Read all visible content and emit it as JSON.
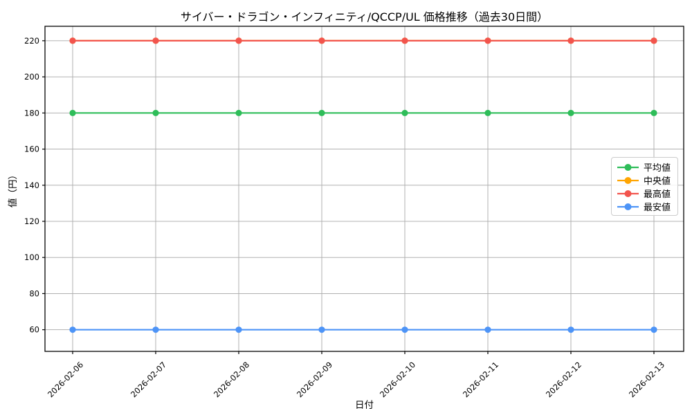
{
  "figure": {
    "background": "#ffffff",
    "spine_color": "#000000",
    "tick_label_color": "#000000"
  },
  "chart_data": {
    "type": "line",
    "title": "サイバー・ドラゴン・インフィニティ/QCCP/UL 価格推移（過去30日間）",
    "xlabel": "日付",
    "ylabel": "値（円）",
    "x": [
      "2026-02-06",
      "2026-02-07",
      "2026-02-08",
      "2026-02-09",
      "2026-02-10",
      "2026-02-11",
      "2026-02-12",
      "2026-02-13"
    ],
    "x_tick_rotation": 45,
    "yticks": [
      60,
      80,
      100,
      120,
      140,
      160,
      180,
      200,
      220
    ],
    "ylim": [
      48,
      228
    ],
    "grid": true,
    "grid_color": "#b0b0b0",
    "legend_position": "center-right",
    "series": [
      {
        "key": "average",
        "name": "平均値",
        "color": "#2ebd59",
        "values": [
          180,
          180,
          180,
          180,
          180,
          180,
          180,
          180
        ]
      },
      {
        "key": "median",
        "name": "中央値",
        "color": "#ffa502",
        "values": [
          220,
          220,
          220,
          220,
          220,
          220,
          220,
          220
        ]
      },
      {
        "key": "highest",
        "name": "最高値",
        "color": "#f2544d",
        "values": [
          220,
          220,
          220,
          220,
          220,
          220,
          220,
          220
        ]
      },
      {
        "key": "lowest",
        "name": "最安値",
        "color": "#4d94f7",
        "values": [
          60,
          60,
          60,
          60,
          60,
          60,
          60,
          60
        ]
      }
    ]
  }
}
